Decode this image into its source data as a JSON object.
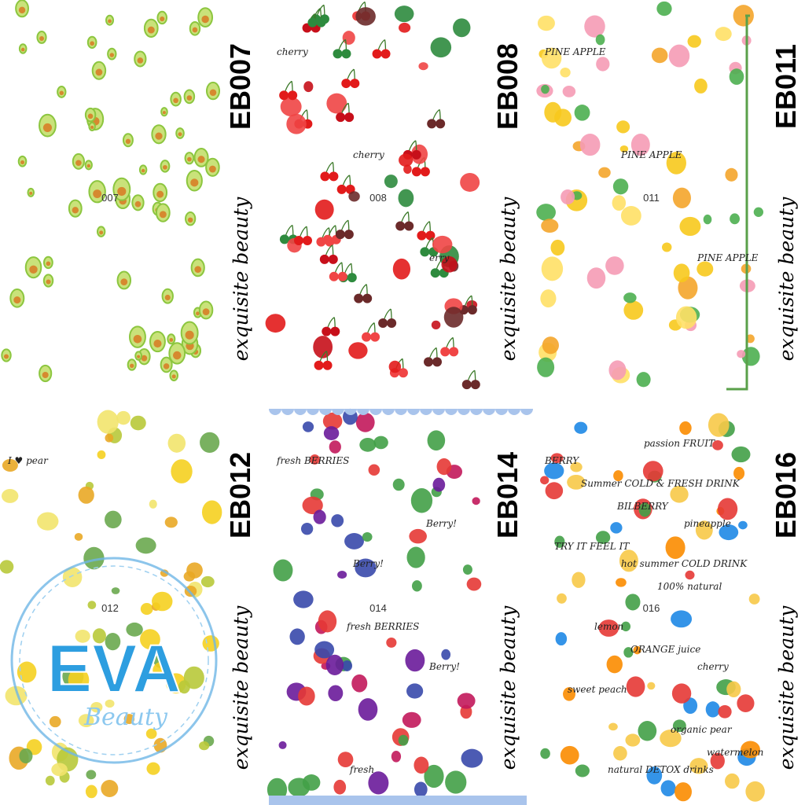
{
  "panels": [
    {
      "code": "EB007",
      "brand": "exquisite beauty",
      "number": "007",
      "labels": []
    },
    {
      "code": "EB008",
      "brand": "exquisite beauty",
      "number": "008",
      "labels": [
        "cherry",
        "cherry",
        "erry"
      ]
    },
    {
      "code": "EB011",
      "brand": "exquisite beauty",
      "number": "011",
      "labels": [
        "PINE APPLE",
        "PINE APPLE",
        "PINE APPLE"
      ]
    },
    {
      "code": "EB012",
      "brand": "exquisite beauty",
      "number": "012",
      "labels": [
        "I ♥ pear"
      ]
    },
    {
      "code": "EB014",
      "brand": "exquisite beauty",
      "number": "014",
      "labels": [
        "fresh BERRIES",
        "Berry!",
        "Berry!",
        "fresh",
        "Berry!",
        "fresh BERRIES"
      ]
    },
    {
      "code": "EB016",
      "brand": "exquisite beauty",
      "number": "016",
      "labels": [
        "BERRY",
        "hot summer COLD DRINK",
        "cherry",
        "natural DETOX drinks",
        "pineapple",
        "lemon",
        "organic pear",
        "Summer COLD & FRESH DRINK",
        "100% natural",
        "sweet peach",
        "passion FRUIT",
        "TRY IT FEEL IT",
        "ORANGE juice",
        "watermelon",
        "BILBERRY"
      ]
    }
  ],
  "watermark": {
    "title": "EVA",
    "subtitle": "Beauty"
  }
}
